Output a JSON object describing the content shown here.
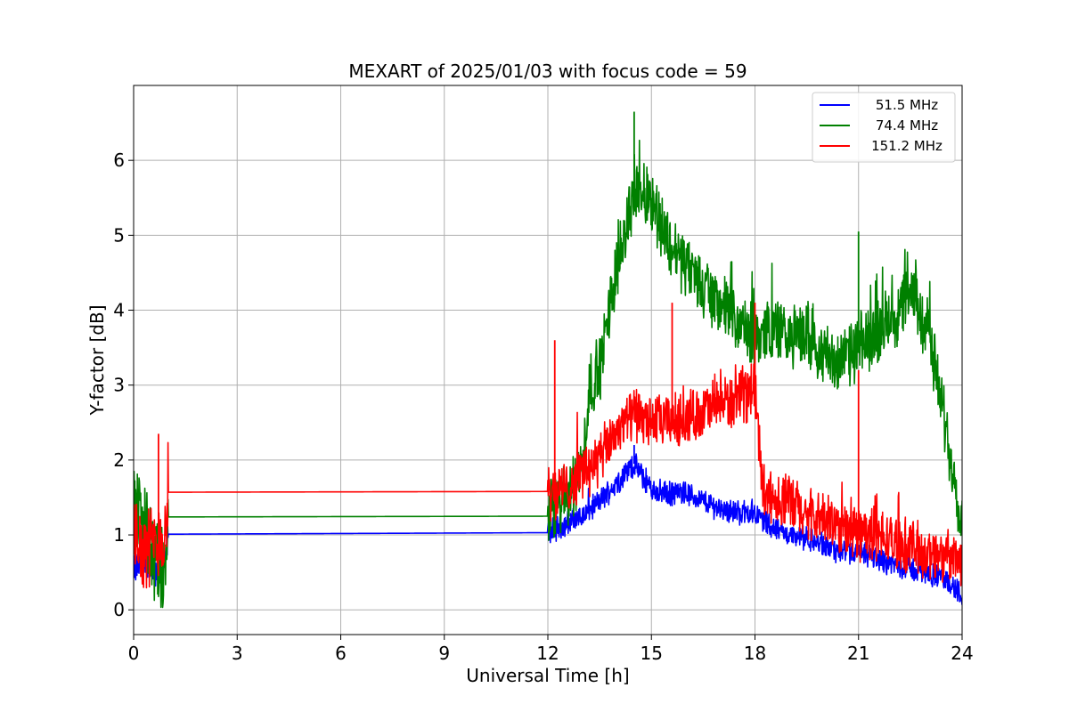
{
  "chart_data": {
    "type": "line",
    "title": "MEXART of 2025/01/03 with focus code = 59",
    "xlabel": "Universal Time [h]",
    "ylabel": "Y-factor [dB]",
    "xlim": [
      0,
      24
    ],
    "ylim": [
      -0.33,
      7.0
    ],
    "xticks": [
      0,
      3,
      6,
      9,
      12,
      15,
      18,
      21,
      24
    ],
    "yticks": [
      0,
      1,
      2,
      3,
      4,
      5,
      6
    ],
    "grid": true,
    "legend_position": "top-right",
    "series": [
      {
        "name": "51.5 MHz",
        "color": "#0000ff",
        "noise": 0.14,
        "x": [
          0,
          0.3,
          0.6,
          0.9,
          1.0,
          12.0,
          12.5,
          13.0,
          13.5,
          14.0,
          14.5,
          15.0,
          15.5,
          16.0,
          16.5,
          17.0,
          17.5,
          18.0,
          18.5,
          19.0,
          19.5,
          20.0,
          20.5,
          21.0,
          21.5,
          22.0,
          22.5,
          23.0,
          23.5,
          24.0
        ],
        "y": [
          0.5,
          0.7,
          0.5,
          0.6,
          1.01,
          1.03,
          1.15,
          1.25,
          1.45,
          1.7,
          1.95,
          1.6,
          1.55,
          1.55,
          1.45,
          1.35,
          1.3,
          1.3,
          1.1,
          1.0,
          0.95,
          0.85,
          0.75,
          0.75,
          0.7,
          0.6,
          0.55,
          0.5,
          0.4,
          0.2
        ]
      },
      {
        "name": "74.4 MHz",
        "color": "#008000",
        "noise": 0.38,
        "x": [
          0,
          0.3,
          0.6,
          0.9,
          1.0,
          12.0,
          12.5,
          13.0,
          13.2,
          13.5,
          14.0,
          14.5,
          15.0,
          15.5,
          16.0,
          16.5,
          17.0,
          17.5,
          18.0,
          18.5,
          19.0,
          19.5,
          20.0,
          20.5,
          21.0,
          21.5,
          22.0,
          22.5,
          23.0,
          23.5,
          24.0
        ],
        "y": [
          1.4,
          1.2,
          0.6,
          0.4,
          1.24,
          1.25,
          1.5,
          1.9,
          3.0,
          3.2,
          4.6,
          5.6,
          5.5,
          4.9,
          4.6,
          4.3,
          4.1,
          3.8,
          3.6,
          3.8,
          3.6,
          3.7,
          3.4,
          3.3,
          3.5,
          3.7,
          3.9,
          4.2,
          3.8,
          2.5,
          1.2
        ]
      },
      {
        "name": "151.2 MHz",
        "color": "#ff0000",
        "noise": 0.32,
        "x": [
          0,
          0.3,
          0.6,
          0.9,
          1.0,
          12.0,
          12.5,
          13.0,
          13.5,
          14.0,
          14.5,
          15.0,
          15.5,
          16.0,
          16.5,
          17.0,
          17.5,
          18.0,
          18.2,
          18.5,
          19.0,
          19.5,
          20.0,
          20.5,
          21.0,
          21.5,
          22.0,
          22.5,
          23.0,
          23.5,
          24.0
        ],
        "y": [
          1.1,
          0.8,
          0.9,
          1.0,
          1.57,
          1.58,
          1.6,
          1.85,
          2.0,
          2.4,
          2.6,
          2.5,
          2.5,
          2.55,
          2.65,
          2.75,
          2.8,
          3.0,
          1.7,
          1.5,
          1.45,
          1.25,
          1.2,
          1.1,
          1.05,
          1.0,
          0.9,
          0.85,
          0.75,
          0.7,
          0.65
        ]
      }
    ],
    "spikes": [
      {
        "series": 2,
        "x": 0.72,
        "y": 2.35
      },
      {
        "series": 2,
        "x": 12.2,
        "y": 3.6
      },
      {
        "series": 2,
        "x": 15.6,
        "y": 4.1
      },
      {
        "series": 2,
        "x": 18.0,
        "y": 4.1
      },
      {
        "series": 2,
        "x": 21.0,
        "y": 3.2
      },
      {
        "series": 1,
        "x": 14.5,
        "y": 6.65
      },
      {
        "series": 1,
        "x": 21.0,
        "y": 5.05
      },
      {
        "series": 0,
        "x": 14.5,
        "y": 2.2
      }
    ]
  }
}
